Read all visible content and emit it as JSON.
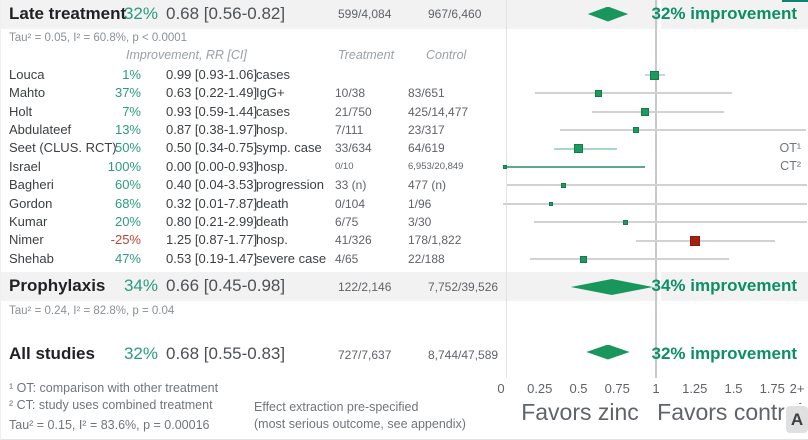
{
  "colors": {
    "green_accent": "#0c8f63",
    "green_pct": "#2a9b7e",
    "red_pct": "#bf4538",
    "diamond": "#18965c",
    "marker_green": "#1f9960",
    "marker_green_border": "#107c4c",
    "marker_red": "#a3220f",
    "marker_red_border": "#8c1b0c",
    "ci_gray": "#d2d2d2",
    "ci_light_green": "#a9d8c3",
    "ci_teal": "#5aa88f",
    "band_bg": "#f2f2f2",
    "gridline": "#c9c9c9"
  },
  "columns": {
    "improvement_rr": "Improvement, RR [CI]",
    "treatment": "Treatment",
    "control": "Control"
  },
  "chart_data": {
    "type": "scatter",
    "subtype": "forest-plot",
    "xlim": [
      0,
      2
    ],
    "axis_ticks": [
      {
        "label": "0",
        "v": 0
      },
      {
        "label": "0.25",
        "v": 0.25
      },
      {
        "label": "0.5",
        "v": 0.5
      },
      {
        "label": "0.75",
        "v": 0.75
      },
      {
        "label": "1",
        "v": 1
      },
      {
        "label": "1.25",
        "v": 1.25
      },
      {
        "label": "1.5",
        "v": 1.5
      },
      {
        "label": "1.75",
        "v": 1.75
      },
      {
        "label": "2+",
        "v": 1.91
      }
    ],
    "favors_left": "Favors zinc",
    "favors_right": "Favors control",
    "summaries": [
      {
        "label": "Late treatment",
        "pct": "32%",
        "rr_text": "0.68 [0.56-0.82]",
        "treatment": "599/4,084",
        "control": "967/6,460",
        "improvement": "32% improvement",
        "het": "Tau² = 0.05, I² = 60.8%, p < 0.0001",
        "rr": 0.68,
        "lo": 0.56,
        "hi": 0.82
      },
      {
        "label": "Prophylaxis",
        "pct": "34%",
        "rr_text": "0.66 [0.45-0.98]",
        "treatment": "122/2,146",
        "control": "7,752/39,526",
        "improvement": "34% improvement",
        "het": "Tau² = 0.24, I² = 82.8%, p = 0.04",
        "rr": 0.66,
        "lo": 0.45,
        "hi": 0.98
      },
      {
        "label": "All studies",
        "pct": "32%",
        "rr_text": "0.68 [0.55-0.83]",
        "treatment": "727/7,637",
        "control": "8,744/47,589",
        "improvement": "32% improvement",
        "het": "Tau² = 0.15, I² = 83.6%, p = 0.00016",
        "rr": 0.68,
        "lo": 0.55,
        "hi": 0.83
      }
    ],
    "studies": [
      {
        "name": "Louca",
        "pct": "1%",
        "rr_text": "0.99 [0.93-1.06]",
        "outcome": "cases",
        "treatment": "",
        "control": "",
        "rr": 0.99,
        "lo": 0.93,
        "hi": 1.06,
        "size": 9,
        "marker": "green",
        "ci_color": "gray",
        "note": "",
        "small": false
      },
      {
        "name": "Mahto",
        "pct": "37%",
        "rr_text": "0.63 [0.22-1.49]",
        "outcome": "IgG+",
        "treatment": "10/38",
        "control": "83/651",
        "rr": 0.63,
        "lo": 0.22,
        "hi": 1.49,
        "size": 7,
        "marker": "green",
        "ci_color": "gray",
        "note": "",
        "small": false
      },
      {
        "name": "Holt",
        "pct": "7%",
        "rr_text": "0.93 [0.59-1.44]",
        "outcome": "cases",
        "treatment": "21/750",
        "control": "425/14,477",
        "rr": 0.93,
        "lo": 0.59,
        "hi": 1.44,
        "size": 8,
        "marker": "green",
        "ci_color": "gray",
        "note": "",
        "small": false
      },
      {
        "name": "Abdulateef",
        "pct": "13%",
        "rr_text": "0.87 [0.38-1.97]",
        "outcome": "hosp.",
        "treatment": "7/111",
        "control": "23/317",
        "rr": 0.87,
        "lo": 0.38,
        "hi": 1.97,
        "size": 6,
        "marker": "green",
        "ci_color": "gray",
        "note": "",
        "small": false
      },
      {
        "name": "Seet (CLUS. RCT)",
        "pct": "50%",
        "rr_text": "0.50 [0.34-0.75]",
        "outcome": "symp. case",
        "treatment": "33/634",
        "control": "64/619",
        "rr": 0.5,
        "lo": 0.34,
        "hi": 0.75,
        "size": 9,
        "marker": "green",
        "ci_color": "light_green",
        "note": "OT¹",
        "small": false
      },
      {
        "name": "Israel",
        "pct": "100%",
        "rr_text": "0.00 [0.00-0.93]",
        "outcome": "hosp.",
        "treatment": "0/10",
        "control": "6,953/20,849",
        "rr": 0.0,
        "lo": 0.0,
        "hi": 0.93,
        "size": 4,
        "marker": "green",
        "ci_color": "teal",
        "note": "CT²",
        "small": true
      },
      {
        "name": "Bagheri",
        "pct": "60%",
        "rr_text": "0.40 [0.04-3.53]",
        "outcome": "progression",
        "treatment": "33 (n)",
        "control": "477 (n)",
        "rr": 0.4,
        "lo": 0.04,
        "hi": 3.53,
        "size": 5,
        "marker": "green",
        "ci_color": "gray",
        "note": "",
        "small": false
      },
      {
        "name": "Gordon",
        "pct": "68%",
        "rr_text": "0.32 [0.01-7.87]",
        "outcome": "death",
        "treatment": "0/104",
        "control": "1/96",
        "rr": 0.32,
        "lo": 0.01,
        "hi": 7.87,
        "size": 4,
        "marker": "green",
        "ci_color": "gray",
        "note": "",
        "small": false
      },
      {
        "name": "Kumar",
        "pct": "20%",
        "rr_text": "0.80 [0.21-2.99]",
        "outcome": "death",
        "treatment": "6/75",
        "control": "3/30",
        "rr": 0.8,
        "lo": 0.21,
        "hi": 2.99,
        "size": 5,
        "marker": "green",
        "ci_color": "gray",
        "note": "",
        "small": false
      },
      {
        "name": "Nimer",
        "pct": "-25%",
        "rr_text": "1.25 [0.87-1.77]",
        "outcome": "hosp.",
        "treatment": "41/326",
        "control": "178/1,822",
        "rr": 1.25,
        "lo": 0.87,
        "hi": 1.77,
        "size": 10,
        "marker": "red",
        "ci_color": "gray",
        "note": "",
        "small": false
      },
      {
        "name": "Shehab",
        "pct": "47%",
        "rr_text": "0.53 [0.19-1.47]",
        "outcome": "severe case",
        "treatment": "4/65",
        "control": "22/188",
        "rr": 0.53,
        "lo": 0.19,
        "hi": 1.47,
        "size": 7,
        "marker": "green",
        "ci_color": "gray",
        "note": "",
        "small": false
      }
    ]
  },
  "footnotes": {
    "fn1": "¹ OT: comparison with other treatment",
    "fn2": "² CT: study uses combined treatment",
    "het_all": "Tau² = 0.15, I² = 83.6%, p = 0.00016",
    "effect1": "Effect extraction pre-specified",
    "effect2": "(most serious outcome, see appendix)"
  },
  "overlay": {
    "a_badge": "A"
  }
}
